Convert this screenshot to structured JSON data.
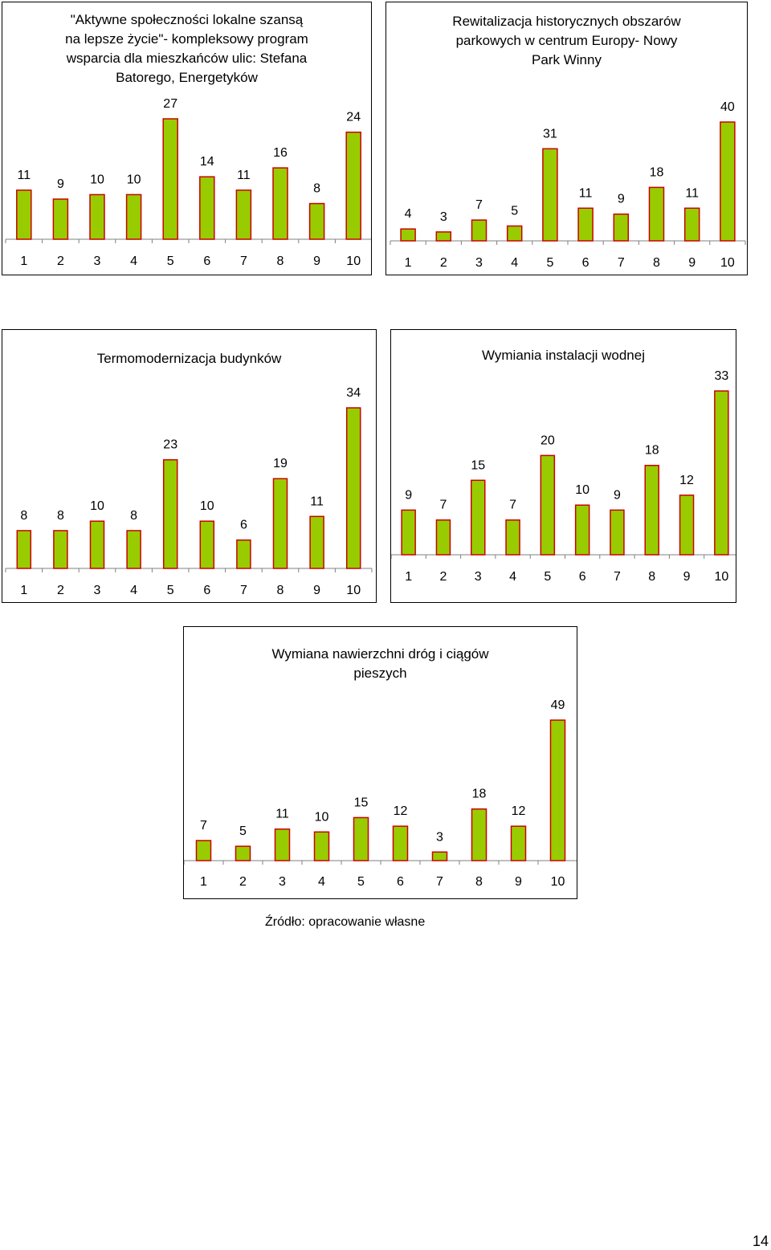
{
  "chart_data": [
    {
      "type": "bar",
      "title": "\"Aktywne społeczności lokalne szansą\nna lepsze życie\"- kompleksowy program\nwsparcia dla mieszkańców ulic: Stefana\nBatorego, Energetyków",
      "categories": [
        "1",
        "2",
        "3",
        "4",
        "5",
        "6",
        "7",
        "8",
        "9",
        "10"
      ],
      "values": [
        11,
        9,
        10,
        10,
        27,
        14,
        11,
        16,
        8,
        24
      ],
      "ylim": [
        0,
        27
      ],
      "legend": "none",
      "grid": false
    },
    {
      "type": "bar",
      "title": "Rewitalizacja historycznych obszarów\nparkowych w centrum Europy- Nowy\nPark Winny",
      "categories": [
        "1",
        "2",
        "3",
        "4",
        "5",
        "6",
        "7",
        "8",
        "9",
        "10"
      ],
      "values": [
        4,
        3,
        7,
        5,
        31,
        11,
        9,
        18,
        11,
        40
      ],
      "ylim": [
        0,
        40
      ],
      "legend": "none",
      "grid": false
    },
    {
      "type": "bar",
      "title": "Termomodernizacja budynków",
      "categories": [
        "1",
        "2",
        "3",
        "4",
        "5",
        "6",
        "7",
        "8",
        "9",
        "10"
      ],
      "values": [
        8,
        8,
        10,
        8,
        23,
        10,
        6,
        19,
        11,
        34
      ],
      "ylim": [
        0,
        34
      ],
      "legend": "none",
      "grid": false
    },
    {
      "type": "bar",
      "title": "Wymiania instalacji wodnej",
      "categories": [
        "1",
        "2",
        "3",
        "4",
        "5",
        "6",
        "7",
        "8",
        "9",
        "10"
      ],
      "values": [
        9,
        7,
        15,
        7,
        20,
        10,
        9,
        18,
        12,
        33
      ],
      "ylim": [
        0,
        33
      ],
      "legend": "none",
      "grid": false
    },
    {
      "type": "bar",
      "title": "Wymiana nawierzchni dróg i ciągów\npieszych",
      "categories": [
        "1",
        "2",
        "3",
        "4",
        "5",
        "6",
        "7",
        "8",
        "9",
        "10"
      ],
      "values": [
        7,
        5,
        11,
        10,
        15,
        12,
        3,
        18,
        12,
        49
      ],
      "ylim": [
        0,
        49
      ],
      "legend": "none",
      "grid": false
    }
  ],
  "colors": {
    "bar_fill": "#99cc00",
    "bar_stroke": "#cc0000",
    "axis": "#808080"
  },
  "footer": {
    "source": "Źródło: opracowanie własne",
    "page_number": "14"
  }
}
